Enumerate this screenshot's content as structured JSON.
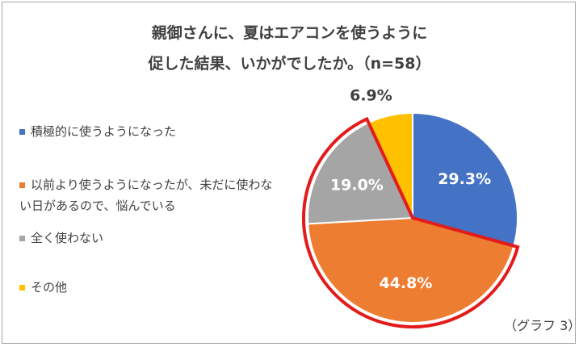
{
  "title_lines": [
    "親御さんに、夏はエアコンを使うように",
    "促した結果、いかがでしたか。（n=58）"
  ],
  "caption": "（グラフ 3）",
  "chart_data": {
    "type": "pie",
    "title": "親御さんに、夏はエアコンを使うように促した結果、いかがでしたか。（n=58）",
    "start_angle_deg": 0,
    "direction": "clockwise",
    "legend_position": "left",
    "highlight_outline": {
      "color": "#e31b1b",
      "slices": [
        1,
        2
      ]
    },
    "categories": [
      "積極的に使うようになった",
      "以前より使うようになったが、未だに使わない日があるので、悩んでいる",
      "全く使わない",
      "その他"
    ],
    "legend_lines": [
      [
        "積極的に使うようになった"
      ],
      [
        "以前より使うようになったが、未だに使わな",
        "い日があるので、悩んでいる"
      ],
      [
        "全く使わない"
      ],
      [
        "その他"
      ]
    ],
    "values": [
      29.3,
      44.8,
      19.0,
      6.9
    ],
    "labels": [
      "29.3%",
      "44.8%",
      "19.0%",
      "6.9%"
    ],
    "colors": [
      "#4472c4",
      "#ed7d31",
      "#a5a5a5",
      "#ffc000"
    ],
    "label_colors": [
      "#ffffff",
      "#ffffff",
      "#ffffff",
      "#404040"
    ]
  }
}
